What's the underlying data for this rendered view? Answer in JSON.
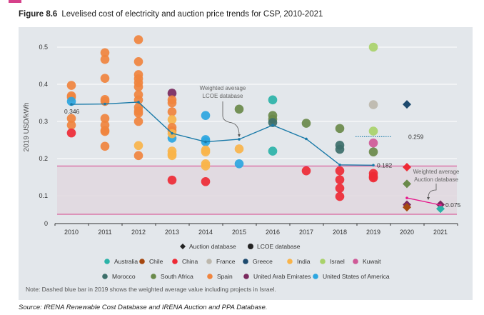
{
  "figure_label": "Figure 8.6",
  "colors": {
    "panel_bg": "#e3e7eb",
    "accent": "#d6408a",
    "band_fill": "#e0d7df",
    "lcoe_line": "#1a7aa8",
    "auction_line": "#e6198c"
  },
  "countries": [
    {
      "name": "Australia",
      "color": "#2bb3a8"
    },
    {
      "name": "Chile",
      "color": "#a5470f"
    },
    {
      "name": "China",
      "color": "#ee2a35"
    },
    {
      "name": "France",
      "color": "#bdb8ad"
    },
    {
      "name": "Greece",
      "color": "#1d4a6e"
    },
    {
      "name": "India",
      "color": "#f9b44a"
    },
    {
      "name": "Israel",
      "color": "#a9d26a"
    },
    {
      "name": "Kuwait",
      "color": "#cf5a97"
    },
    {
      "name": "Morocco",
      "color": "#3d6f6a"
    },
    {
      "name": "South Africa",
      "color": "#6a8a4a"
    },
    {
      "name": "Spain",
      "color": "#f0843e"
    },
    {
      "name": "United Arab Emirates",
      "color": "#7a2a5e"
    },
    {
      "name": "United States of America",
      "color": "#2ca6e0"
    }
  ],
  "note": "Note: Dashed blue bar in 2019 shows the weighted average value including projects in Israel.",
  "source": "Source: IRENA Renewable Cost Database and IRENA Auction and PPA Database.",
  "chart_data": {
    "type": "scatter",
    "title": "Levelised cost of electricity and auction price trends for CSP, 2010-2021",
    "ylabel": "2019 USD/kWh",
    "ylim": [
      0,
      0.5
    ],
    "yticks": [
      "0",
      "0.1",
      "0.2",
      "0.3",
      "0.4",
      "0.5"
    ],
    "ytick_values": [
      0,
      0.1,
      0.2,
      0.3,
      0.4,
      0.5
    ],
    "categories": [
      "2010",
      "2011",
      "2012",
      "2013",
      "2014",
      "2015",
      "2016",
      "2017",
      "2018",
      "2019",
      "2020",
      "2021"
    ],
    "grid": true,
    "legend_position": "bottom",
    "legend_markers": [
      {
        "label": "Auction database",
        "shape": "diamond"
      },
      {
        "label": "LCOE database",
        "shape": "circle"
      }
    ],
    "shaded_band": [
      0.05,
      0.18
    ],
    "lcoe_points": [
      {
        "year": 2010,
        "value": 0.397,
        "country": "Spain"
      },
      {
        "year": 2010,
        "value": 0.369,
        "country": "Spain"
      },
      {
        "year": 2010,
        "value": 0.365,
        "country": "Spain"
      },
      {
        "year": 2010,
        "value": 0.354,
        "country": "United States of America"
      },
      {
        "year": 2010,
        "value": 0.308,
        "country": "Spain"
      },
      {
        "year": 2010,
        "value": 0.29,
        "country": "Spain"
      },
      {
        "year": 2010,
        "value": 0.269,
        "country": "China"
      },
      {
        "year": 2011,
        "value": 0.485,
        "country": "Spain"
      },
      {
        "year": 2011,
        "value": 0.467,
        "country": "Spain"
      },
      {
        "year": 2011,
        "value": 0.416,
        "country": "Spain"
      },
      {
        "year": 2011,
        "value": 0.359,
        "country": "Spain"
      },
      {
        "year": 2011,
        "value": 0.354,
        "country": "Spain"
      },
      {
        "year": 2011,
        "value": 0.308,
        "country": "Spain"
      },
      {
        "year": 2011,
        "value": 0.29,
        "country": "Spain"
      },
      {
        "year": 2011,
        "value": 0.276,
        "country": "Spain"
      },
      {
        "year": 2011,
        "value": 0.273,
        "country": "Spain"
      },
      {
        "year": 2011,
        "value": 0.233,
        "country": "Spain"
      },
      {
        "year": 2012,
        "value": 0.52,
        "country": "Spain"
      },
      {
        "year": 2012,
        "value": 0.461,
        "country": "Spain"
      },
      {
        "year": 2012,
        "value": 0.426,
        "country": "Spain"
      },
      {
        "year": 2012,
        "value": 0.415,
        "country": "Spain"
      },
      {
        "year": 2012,
        "value": 0.404,
        "country": "Spain"
      },
      {
        "year": 2012,
        "value": 0.393,
        "country": "Spain"
      },
      {
        "year": 2012,
        "value": 0.372,
        "country": "Spain"
      },
      {
        "year": 2012,
        "value": 0.358,
        "country": "Spain"
      },
      {
        "year": 2012,
        "value": 0.338,
        "country": "Spain"
      },
      {
        "year": 2012,
        "value": 0.328,
        "country": "Spain"
      },
      {
        "year": 2012,
        "value": 0.322,
        "country": "Spain"
      },
      {
        "year": 2012,
        "value": 0.3,
        "country": "Spain"
      },
      {
        "year": 2012,
        "value": 0.235,
        "country": "India"
      },
      {
        "year": 2012,
        "value": 0.208,
        "country": "Spain"
      },
      {
        "year": 2013,
        "value": 0.376,
        "country": "United Arab Emirates"
      },
      {
        "year": 2013,
        "value": 0.358,
        "country": "Spain"
      },
      {
        "year": 2013,
        "value": 0.35,
        "country": "Spain"
      },
      {
        "year": 2013,
        "value": 0.326,
        "country": "Spain"
      },
      {
        "year": 2013,
        "value": 0.305,
        "country": "India"
      },
      {
        "year": 2013,
        "value": 0.284,
        "country": "Spain"
      },
      {
        "year": 2013,
        "value": 0.275,
        "country": "Spain"
      },
      {
        "year": 2013,
        "value": 0.255,
        "country": "United States of America"
      },
      {
        "year": 2013,
        "value": 0.267,
        "country": "India"
      },
      {
        "year": 2013,
        "value": 0.22,
        "country": "India"
      },
      {
        "year": 2013,
        "value": 0.212,
        "country": "India"
      },
      {
        "year": 2013,
        "value": 0.208,
        "country": "India"
      },
      {
        "year": 2013,
        "value": 0.142,
        "country": "China"
      },
      {
        "year": 2014,
        "value": 0.316,
        "country": "United States of America"
      },
      {
        "year": 2014,
        "value": 0.251,
        "country": "United States of America"
      },
      {
        "year": 2014,
        "value": 0.245,
        "country": "United States of America"
      },
      {
        "year": 2014,
        "value": 0.223,
        "country": "India"
      },
      {
        "year": 2014,
        "value": 0.218,
        "country": "India"
      },
      {
        "year": 2014,
        "value": 0.186,
        "country": "India"
      },
      {
        "year": 2014,
        "value": 0.18,
        "country": "India"
      },
      {
        "year": 2014,
        "value": 0.138,
        "country": "China"
      },
      {
        "year": 2015,
        "value": 0.333,
        "country": "South Africa"
      },
      {
        "year": 2015,
        "value": 0.226,
        "country": "India"
      },
      {
        "year": 2015,
        "value": 0.186,
        "country": "United States of America"
      },
      {
        "year": 2016,
        "value": 0.358,
        "country": "Australia"
      },
      {
        "year": 2016,
        "value": 0.316,
        "country": "South Africa"
      },
      {
        "year": 2016,
        "value": 0.306,
        "country": "South Africa"
      },
      {
        "year": 2016,
        "value": 0.297,
        "country": "Morocco"
      },
      {
        "year": 2016,
        "value": 0.22,
        "country": "Australia"
      },
      {
        "year": 2017,
        "value": 0.295,
        "country": "South Africa"
      },
      {
        "year": 2017,
        "value": 0.167,
        "country": "China"
      },
      {
        "year": 2018,
        "value": 0.281,
        "country": "South Africa"
      },
      {
        "year": 2018,
        "value": 0.236,
        "country": "Morocco"
      },
      {
        "year": 2018,
        "value": 0.225,
        "country": "Morocco"
      },
      {
        "year": 2018,
        "value": 0.167,
        "country": "China"
      },
      {
        "year": 2018,
        "value": 0.143,
        "country": "China"
      },
      {
        "year": 2018,
        "value": 0.12,
        "country": "China"
      },
      {
        "year": 2018,
        "value": 0.098,
        "country": "China"
      },
      {
        "year": 2019,
        "value": 0.5,
        "country": "Israel"
      },
      {
        "year": 2019,
        "value": 0.345,
        "country": "France"
      },
      {
        "year": 2019,
        "value": 0.274,
        "country": "Israel"
      },
      {
        "year": 2019,
        "value": 0.242,
        "country": "Kuwait"
      },
      {
        "year": 2019,
        "value": 0.218,
        "country": "South Africa"
      },
      {
        "year": 2019,
        "value": 0.16,
        "country": "China"
      },
      {
        "year": 2019,
        "value": 0.152,
        "country": "China"
      },
      {
        "year": 2019,
        "value": 0.148,
        "country": "China"
      }
    ],
    "auction_points": [
      {
        "year": 2020,
        "value": 0.346,
        "country": "Greece"
      },
      {
        "year": 2020,
        "value": 0.177,
        "country": "China"
      },
      {
        "year": 2020,
        "value": 0.132,
        "country": "South Africa"
      },
      {
        "year": 2020,
        "value": 0.076,
        "country": "United Arab Emirates"
      },
      {
        "year": 2020,
        "value": 0.069,
        "country": "Chile"
      },
      {
        "year": 2021,
        "value": 0.076,
        "country": "United Arab Emirates"
      },
      {
        "year": 2021,
        "value": 0.065,
        "country": "Australia"
      }
    ],
    "lcoe_weighted_average": {
      "label": "Weighted average LCOE database",
      "label_lines": [
        "Weighted average",
        "LCOE database"
      ],
      "years": [
        2010,
        2011,
        2012,
        2013,
        2014,
        2015,
        2016,
        2017,
        2018,
        2019
      ],
      "values": [
        0.346,
        0.347,
        0.352,
        0.268,
        0.245,
        0.252,
        0.29,
        0.253,
        0.183,
        0.182
      ]
    },
    "auction_weighted_average": {
      "label": "Weighted average Auction database",
      "label_lines": [
        "Weighted average",
        "Auction database"
      ],
      "years": [
        2020,
        2021
      ],
      "values": [
        0.094,
        0.075
      ]
    },
    "data_labels": [
      {
        "year": 2010,
        "value": 0.346,
        "text": "0.346"
      },
      {
        "year": 2019,
        "value": 0.182,
        "text": "0.182"
      },
      {
        "year": 2021,
        "value": 0.075,
        "text": "0.075"
      },
      {
        "year": 2019,
        "value": 0.259,
        "text": "0.259"
      }
    ],
    "dashed_average_2019_including_israel": 0.259
  }
}
